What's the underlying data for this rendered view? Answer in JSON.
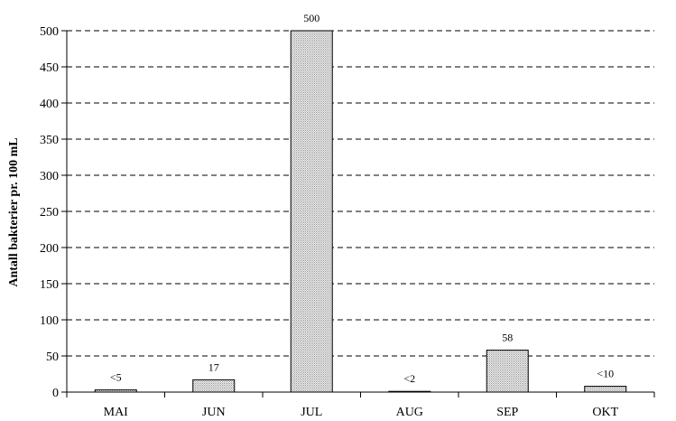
{
  "chart_data": {
    "type": "bar",
    "title": "",
    "xlabel": "",
    "ylabel": "Antall bakterier pr. 100 mL",
    "categories": [
      "MAI",
      "JUN",
      "JUL",
      "AUG",
      "SEP",
      "OKT"
    ],
    "values": [
      3,
      17,
      500,
      1,
      58,
      8
    ],
    "data_labels": [
      "<5",
      "17",
      "500",
      "<2",
      "58",
      "<10"
    ],
    "ylim": [
      0,
      500
    ],
    "yticks": [
      "0",
      "50",
      "100",
      "150",
      "200",
      "250",
      "300",
      "350",
      "400",
      "450",
      "500"
    ],
    "grid": "horizontal dashed",
    "legend": "none",
    "bar_fill": "dotted light gray"
  }
}
